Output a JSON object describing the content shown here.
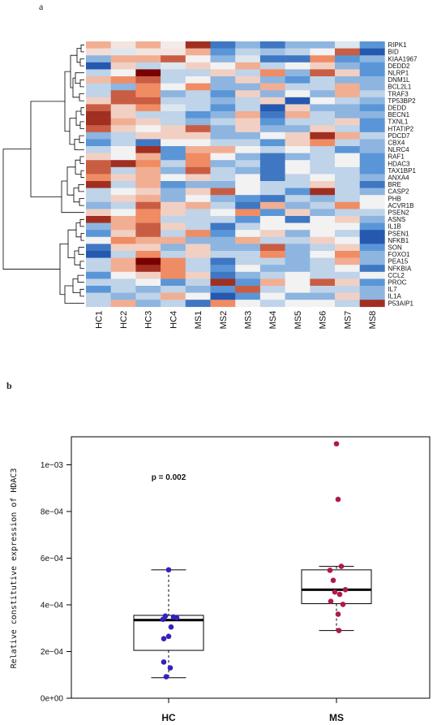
{
  "colors": {
    "low": "#0a3a9c",
    "mid": "#f2f2f2",
    "high": "#7a0000",
    "hc_points": "#3322bb",
    "ms_points": "#b01850"
  },
  "chart_data": [
    {
      "panel_label": "a",
      "type": "heatmap",
      "title": "",
      "genes": [
        "RIPK1",
        "BID",
        "KIAA1967",
        "DEDD2",
        "NLRP1",
        "DNM1L",
        "BCL2L1",
        "TRAF3",
        "TP53BP2",
        "DEDD",
        "BECN1",
        "TXNL1",
        "HTATIP2",
        "PDCD7",
        "CBX4",
        "NLRC4",
        "RAF1",
        "HDAC3",
        "TAX1BP1",
        "ANXA4",
        "BRE",
        "CASP2",
        "PHB",
        "ACVR1B",
        "PSEN2",
        "ASNS",
        "IL1B",
        "PSEN1",
        "NFKB1",
        "SON",
        "FOXO1",
        "PEA15",
        "NFKBIA",
        "CCL2",
        "PROC",
        "IL7",
        "IL1A",
        "P53AIP1"
      ],
      "samples": [
        "HC1",
        "HC2",
        "HC3",
        "HC4",
        "MS1",
        "MS2",
        "MS3",
        "MS4",
        "MS5",
        "MS6",
        "MS7",
        "MS8"
      ],
      "values": [
        [
          1,
          0.2,
          1,
          0.1,
          2.5,
          -2,
          -1,
          -2,
          -1,
          -1,
          -0.2,
          -1.5
        ],
        [
          0.3,
          -0.2,
          0.2,
          0.2,
          1,
          -1.5,
          -0.5,
          -0.8,
          -0.5,
          0,
          2,
          -2.5
        ],
        [
          -1,
          1,
          1,
          2,
          0,
          -1,
          -0.2,
          -2,
          -2,
          1.5,
          -1.5,
          -1
        ],
        [
          -2.5,
          0.5,
          -0.5,
          -0.2,
          0.5,
          0,
          1,
          -0.5,
          0,
          0.5,
          -1,
          -1.5
        ],
        [
          -0.5,
          0,
          3,
          -0.5,
          -0.5,
          0.5,
          -0.5,
          1.5,
          -1,
          2,
          0.5,
          -1.5
        ],
        [
          0.8,
          1.5,
          2,
          -0.5,
          0,
          -1,
          0.5,
          -1,
          -1.5,
          -0.5,
          -1,
          -1
        ],
        [
          -0.5,
          -1,
          1.5,
          0,
          1.5,
          -1,
          -1,
          1,
          -0.5,
          -0.5,
          1,
          -1
        ],
        [
          -0.5,
          2,
          1.5,
          -1,
          -0.5,
          -1.5,
          0.5,
          -1,
          0,
          -1,
          1,
          -0.5
        ],
        [
          0.5,
          2,
          2,
          -0.5,
          -0.5,
          -1,
          -0.5,
          0.5,
          -2.5,
          0,
          -0.5,
          -1
        ],
        [
          2,
          0.5,
          1.5,
          -0.2,
          -0.5,
          -1.5,
          -0.5,
          -2.5,
          0.5,
          -1,
          -1,
          -1.5
        ],
        [
          2.5,
          0.5,
          -0.5,
          -0.5,
          -1.5,
          -1,
          1,
          -2,
          1,
          -0.5,
          -1,
          -1
        ],
        [
          2.5,
          1,
          0.5,
          -0.5,
          -1,
          -0.5,
          0.5,
          -1.5,
          -0.5,
          -0.5,
          0.5,
          -1.5
        ],
        [
          2,
          0.5,
          0,
          0.5,
          2,
          -1,
          0.5,
          -1,
          -1,
          0.5,
          -0.5,
          -1.5
        ],
        [
          -1,
          -0.5,
          0.5,
          0.5,
          0.5,
          -1,
          -1,
          0,
          0.5,
          2.5,
          1,
          -0.5
        ],
        [
          -1.5,
          -0.5,
          -2,
          0,
          0,
          -0.5,
          -0.5,
          -1.5,
          0.5,
          1.5,
          -0.5,
          -1
        ],
        [
          -0.5,
          0,
          2.5,
          -1.5,
          1,
          1,
          0,
          -0.5,
          0,
          -0.5,
          -1.5,
          -1
        ],
        [
          0.5,
          0,
          1,
          -1.5,
          1.5,
          0,
          -1,
          -2,
          -1,
          -0.5,
          0,
          -1.5
        ],
        [
          2,
          2.5,
          1.5,
          -0.5,
          1.5,
          -1,
          -0.5,
          -2,
          0,
          -0.5,
          0,
          -1.5
        ],
        [
          2,
          -0.5,
          1,
          -1,
          2,
          -0.5,
          -1,
          -2,
          0,
          -0.5,
          -0.5,
          -1.5
        ],
        [
          1.5,
          0.5,
          1,
          0,
          0.5,
          -0.5,
          0,
          -2,
          -0.5,
          0,
          -0.5,
          -1
        ],
        [
          2.5,
          -0.5,
          1,
          -1.5,
          -1,
          -1,
          0,
          -0.5,
          -0.5,
          0.5,
          -0.5,
          -2
        ],
        [
          -0.5,
          0,
          0.5,
          -1,
          0.5,
          2,
          0,
          -0.5,
          -1.5,
          2.5,
          -0.5,
          -1
        ],
        [
          -0.5,
          0.5,
          1,
          -1,
          0,
          -1,
          -1.5,
          -2,
          -0.5,
          -1,
          -0.5,
          0
        ],
        [
          -1,
          -0.5,
          2,
          0.5,
          1,
          -0.5,
          -2,
          1,
          -1,
          -0.5,
          1.5,
          0
        ],
        [
          0.5,
          0,
          1.5,
          0.5,
          -0.5,
          0,
          1.5,
          -1.5,
          0.5,
          -1,
          -0.5,
          -0.5
        ],
        [
          2.5,
          1,
          1.5,
          -0.5,
          -0.5,
          -0.5,
          -1.5,
          0,
          -2,
          0,
          0.5,
          -1
        ],
        [
          -1,
          1,
          2,
          0.5,
          -0.5,
          -2,
          -0.5,
          0,
          0,
          0,
          0,
          -1.5
        ],
        [
          -1.5,
          0.5,
          2,
          -0.5,
          1.5,
          -1.5,
          0,
          0.5,
          -1,
          0,
          -0.5,
          -2.5
        ],
        [
          0,
          1.5,
          1,
          1,
          -1,
          -1,
          1,
          -0.5,
          -0.5,
          0.5,
          0,
          -2.5
        ],
        [
          -2,
          0.5,
          0.5,
          -1,
          0.5,
          -1,
          -1,
          2,
          -1,
          -0.5,
          0.5,
          -1.5
        ],
        [
          -2.5,
          -0.5,
          1.5,
          -0.5,
          0.5,
          -0.5,
          -0.5,
          1.5,
          -1,
          0,
          1.5,
          -1
        ],
        [
          -0.5,
          1,
          3,
          1.5,
          -0.5,
          -2,
          -0.5,
          -0.5,
          -1,
          -0.5,
          1,
          -1
        ],
        [
          -0.5,
          1,
          2.5,
          1.5,
          -0.5,
          -1.5,
          0,
          -1,
          -1,
          -0.5,
          0,
          -2
        ],
        [
          -1.5,
          0,
          0.5,
          1.5,
          0.5,
          -2,
          -1,
          -0.5,
          0,
          -0.5,
          -0.5,
          0
        ],
        [
          -0.5,
          -0.5,
          0,
          -1.5,
          -0.5,
          2.5,
          -1.5,
          1,
          0,
          2,
          0.5,
          -1.5
        ],
        [
          -1.5,
          -0.5,
          -1,
          -0.5,
          -1,
          -1.5,
          2,
          -0.5,
          0,
          -0.5,
          -0.5,
          -1
        ],
        [
          -0.5,
          -1,
          -0.5,
          1,
          0,
          -2.5,
          -1.5,
          0,
          -1,
          -1,
          0.5,
          -1
        ],
        [
          -0.5,
          1,
          -1,
          -0.5,
          -2,
          1.5,
          0,
          -0.5,
          0,
          0,
          -0.5,
          2.5
        ]
      ]
    },
    {
      "panel_label": "b",
      "type": "box",
      "title": "",
      "ylabel": "Relative constitutive expression of HDAC3",
      "xlabel": "",
      "categories": [
        "HC",
        "MS"
      ],
      "ylim": [
        0,
        0.00112
      ],
      "yticks": [
        0,
        0.0002,
        0.0004,
        0.0006,
        0.0008,
        0.001
      ],
      "ytick_labels": [
        "0e+00",
        "2e−04",
        "4e−04",
        "6e−04",
        "8e−04",
        "1e−03"
      ],
      "annotation": "p = 0.002",
      "boxes": [
        {
          "name": "HC",
          "whisker_low": 8.8e-05,
          "q1": 0.000205,
          "median": 0.000335,
          "q3": 0.000355,
          "whisker_high": 0.00055,
          "points": [
            0.00055,
            0.000352,
            0.000348,
            0.000345,
            0.000338,
            0.000305,
            0.000265,
            0.000255,
            0.000155,
            0.00013,
            9.2e-05
          ]
        },
        {
          "name": "MS",
          "whisker_low": 0.00029,
          "q1": 0.000405,
          "median": 0.000465,
          "q3": 0.00055,
          "whisker_high": 0.000565,
          "points": [
            0.00109,
            0.000852,
            0.000565,
            0.000548,
            0.000505,
            0.000465,
            0.000455,
            0.000445,
            0.000415,
            0.000402,
            0.00036,
            0.00029
          ]
        }
      ]
    }
  ]
}
